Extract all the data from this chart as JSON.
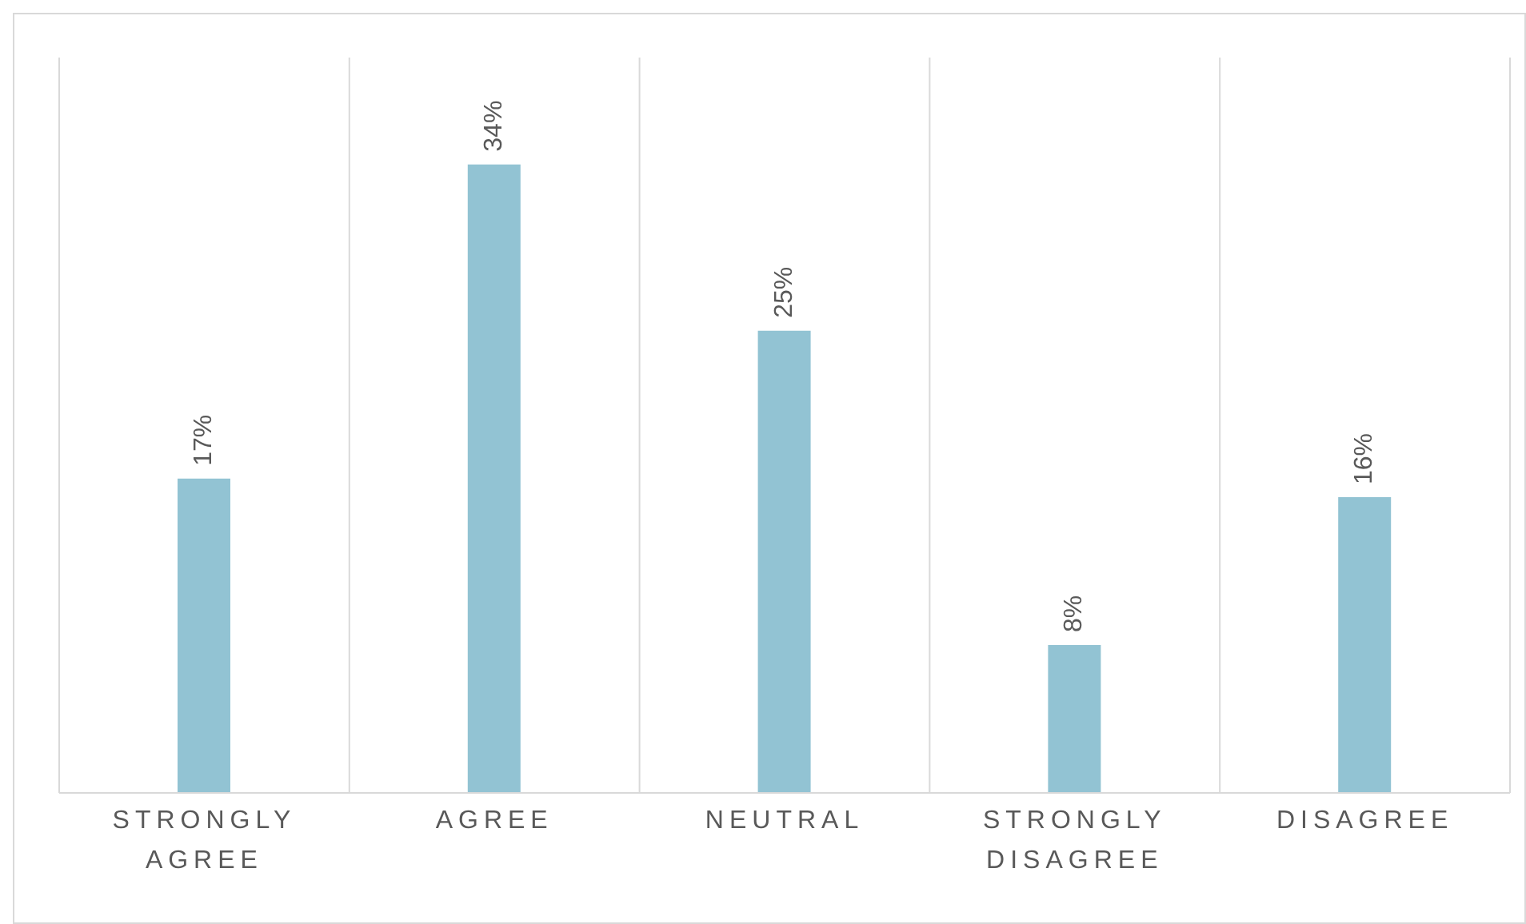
{
  "chart_data": {
    "type": "bar",
    "categories": [
      "STRONGLY AGREE",
      "AGREE",
      "NEUTRAL",
      "STRONGLY DISAGREE",
      "DISAGREE"
    ],
    "values": [
      17,
      34,
      25,
      8,
      16
    ],
    "value_labels": [
      "17%",
      "34%",
      "25%",
      "8%",
      "16%"
    ],
    "color": "#92c3d3",
    "grid": "x"
  }
}
